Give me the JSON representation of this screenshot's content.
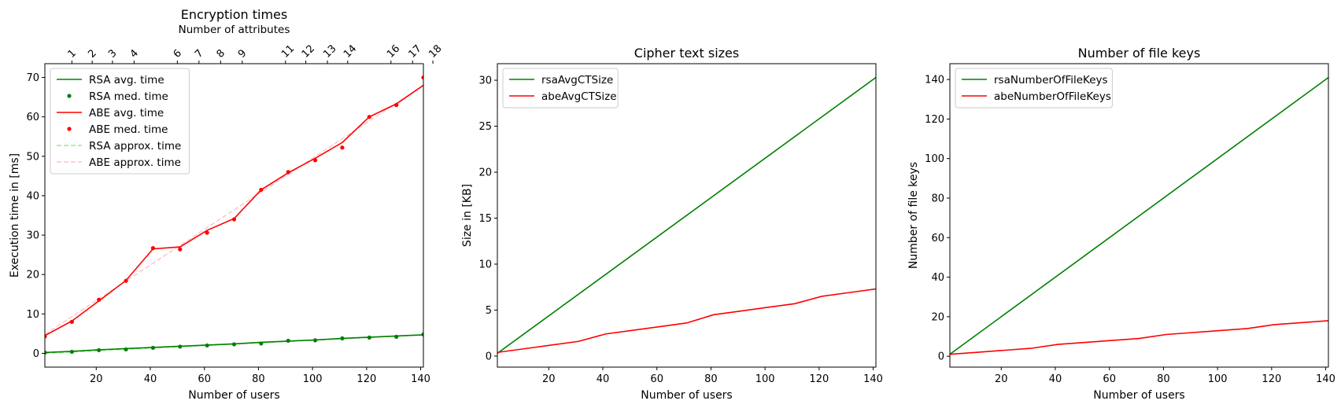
{
  "chart_data": [
    {
      "type": "line",
      "title": "Encryption times",
      "xlabel": "Number of users",
      "ylabel": "Execution time in [ms]",
      "xlim": [
        1,
        141
      ],
      "ylim": [
        -3.5,
        73.5
      ],
      "xticks": [
        20,
        40,
        60,
        80,
        100,
        120,
        140
      ],
      "yticks": [
        0,
        10,
        20,
        30,
        40,
        50,
        60,
        70
      ],
      "secondary_xaxis": {
        "label": "Number of attributes",
        "ticks": [
          {
            "x": 11,
            "label": "1"
          },
          {
            "x": 18.5,
            "label": "2"
          },
          {
            "x": 26,
            "label": "3"
          },
          {
            "x": 34,
            "label": "4"
          },
          {
            "x": 50,
            "label": "6"
          },
          {
            "x": 58,
            "label": "7"
          },
          {
            "x": 66,
            "label": "8"
          },
          {
            "x": 74,
            "label": "9"
          },
          {
            "x": 90,
            "label": "11"
          },
          {
            "x": 97.5,
            "label": "12"
          },
          {
            "x": 105.5,
            "label": "13"
          },
          {
            "x": 113,
            "label": "14"
          },
          {
            "x": 129,
            "label": "16"
          },
          {
            "x": 137,
            "label": "17"
          },
          {
            "x": 144.5,
            "label": "18"
          }
        ]
      },
      "legend": "upper-left",
      "series": [
        {
          "name": "RSA avg. time",
          "style": "solid",
          "color": "#008000",
          "x": [
            1,
            11,
            21,
            31,
            41,
            51,
            61,
            71,
            81,
            91,
            101,
            111,
            121,
            131,
            141
          ],
          "y": [
            0.2,
            0.5,
            0.9,
            1.2,
            1.5,
            1.8,
            2.1,
            2.4,
            2.8,
            3.1,
            3.4,
            3.8,
            4.1,
            4.4,
            4.7
          ]
        },
        {
          "name": "RSA med. time",
          "style": "dots",
          "color": "#008000",
          "x": [
            1,
            11,
            21,
            31,
            41,
            51,
            61,
            71,
            81,
            91,
            101,
            111,
            121,
            131,
            141
          ],
          "y": [
            0.2,
            0.4,
            0.8,
            1.0,
            1.4,
            1.7,
            2.0,
            2.3,
            2.5,
            3.2,
            3.3,
            3.8,
            4.0,
            4.2,
            4.8
          ]
        },
        {
          "name": "ABE avg. time",
          "style": "solid",
          "color": "#ff0000",
          "x": [
            1,
            11,
            21,
            31,
            41,
            51,
            61,
            71,
            81,
            91,
            101,
            111,
            121,
            131,
            141
          ],
          "y": [
            4.5,
            8.2,
            13.3,
            18.5,
            26.5,
            27.0,
            31.2,
            34.2,
            41.5,
            45.8,
            49.5,
            53.5,
            60.0,
            63.3,
            68.0
          ]
        },
        {
          "name": "ABE med. time",
          "style": "dots",
          "color": "#ff0000",
          "x": [
            1,
            11,
            21,
            31,
            41,
            51,
            61,
            71,
            81,
            91,
            101,
            111,
            121,
            131,
            141
          ],
          "y": [
            4.3,
            8.0,
            13.6,
            18.4,
            26.7,
            26.4,
            30.6,
            34.0,
            41.5,
            46.0,
            49.0,
            52.2,
            60.0,
            63.0,
            70.0
          ]
        },
        {
          "name": "RSA approx. time",
          "style": "dashed",
          "color": "#90ee90",
          "x": [
            1,
            141
          ],
          "y": [
            0.0,
            4.7
          ]
        },
        {
          "name": "ABE approx. time",
          "style": "dashed",
          "color": "#ffc0cb",
          "x": [
            1,
            141
          ],
          "y": [
            4.8,
            68.0
          ]
        }
      ]
    },
    {
      "type": "line",
      "title": "Cipher text sizes",
      "xlabel": "Number of users",
      "ylabel": "Size in [KB]",
      "xlim": [
        1,
        141
      ],
      "ylim": [
        -1.2,
        31.8
      ],
      "xticks": [
        20,
        40,
        60,
        80,
        100,
        120,
        140
      ],
      "yticks": [
        0,
        5,
        10,
        15,
        20,
        25,
        30
      ],
      "legend": "upper-left",
      "series": [
        {
          "name": "rsaAvgCTSize",
          "style": "solid",
          "color": "#008000",
          "x": [
            1,
            141
          ],
          "y": [
            0.3,
            30.3
          ]
        },
        {
          "name": "abeAvgCTSize",
          "style": "solid",
          "color": "#ff0000",
          "x": [
            1,
            11,
            21,
            31,
            41,
            51,
            61,
            71,
            81,
            91,
            101,
            111,
            121,
            131,
            141
          ],
          "y": [
            0.4,
            0.8,
            1.2,
            1.6,
            2.4,
            2.8,
            3.2,
            3.6,
            4.5,
            4.9,
            5.3,
            5.7,
            6.5,
            6.9,
            7.3
          ]
        }
      ]
    },
    {
      "type": "line",
      "title": "Number of file keys",
      "xlabel": "Number of users",
      "ylabel": "Number of file keys",
      "xlim": [
        1,
        141
      ],
      "ylim": [
        -5.5,
        148
      ],
      "xticks": [
        20,
        40,
        60,
        80,
        100,
        120,
        140
      ],
      "yticks": [
        0,
        20,
        40,
        60,
        80,
        100,
        120,
        140
      ],
      "legend": "upper-left",
      "series": [
        {
          "name": "rsaNumberOfFileKeys",
          "style": "solid",
          "color": "#008000",
          "x": [
            1,
            141
          ],
          "y": [
            1,
            141
          ]
        },
        {
          "name": "abeNumberOfFileKeys",
          "style": "solid",
          "color": "#ff0000",
          "x": [
            1,
            11,
            21,
            31,
            41,
            51,
            61,
            71,
            81,
            91,
            101,
            111,
            121,
            131,
            141
          ],
          "y": [
            1,
            2,
            3,
            4,
            6,
            7,
            8,
            9,
            11,
            12,
            13,
            14,
            16,
            17,
            18
          ]
        }
      ]
    }
  ]
}
